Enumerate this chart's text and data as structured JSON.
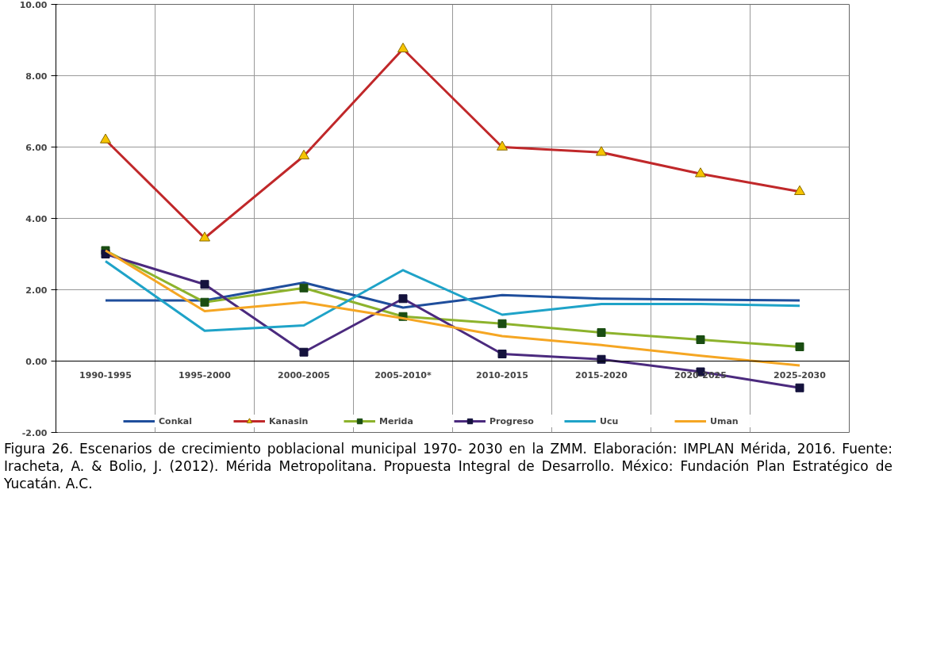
{
  "chart_data": {
    "type": "line",
    "categories": [
      "1990-1995",
      "1995-2000",
      "2000-2005",
      "2005-2010*",
      "2010-2015",
      "2015-2020",
      "2020-2025",
      "2025-2030"
    ],
    "series": [
      {
        "name": "Conkal",
        "color": "#1f4e9c",
        "marker": "none",
        "values": [
          1.7,
          1.7,
          2.2,
          1.5,
          1.85,
          1.75,
          1.72,
          1.7
        ]
      },
      {
        "name": "Kanasin",
        "color": "#c0282a",
        "marker": "triangle",
        "values": [
          6.2,
          3.45,
          5.75,
          8.75,
          6.0,
          5.85,
          5.25,
          4.75
        ]
      },
      {
        "name": "Merida",
        "color": "#8db32d",
        "marker": "square",
        "values": [
          3.1,
          1.65,
          2.05,
          1.25,
          1.05,
          0.8,
          0.6,
          0.4
        ]
      },
      {
        "name": "Progreso",
        "color": "#4b2a7e",
        "marker": "square",
        "values": [
          3.0,
          2.15,
          0.25,
          1.75,
          0.2,
          0.05,
          -0.3,
          -0.75
        ]
      },
      {
        "name": "Ucu",
        "color": "#1fa3c8",
        "marker": "none",
        "values": [
          2.8,
          0.85,
          1.0,
          2.55,
          1.3,
          1.6,
          1.6,
          1.55
        ]
      },
      {
        "name": "Uman",
        "color": "#f5a623",
        "marker": "none",
        "values": [
          3.1,
          1.4,
          1.65,
          1.2,
          0.7,
          0.45,
          0.15,
          -0.12
        ]
      }
    ],
    "ylim": [
      -2,
      10
    ],
    "yticks": [
      {
        "value": -2,
        "label": "-2.00"
      },
      {
        "value": 0,
        "label": "0.00"
      },
      {
        "value": 2,
        "label": "2.00"
      },
      {
        "value": 4,
        "label": "4.00"
      },
      {
        "value": 6,
        "label": "6.00"
      },
      {
        "value": 8,
        "label": "8.00"
      },
      {
        "value": 10,
        "label": "10.00"
      }
    ],
    "grid": true,
    "legend": "bottom",
    "line_style": "solid",
    "annotations": [
      "Figura 26. Escenarios de crecimiento poblacional municipal 1970- 2030 en la ZMM. Elaboración: IMPLAN Mérida, 2016. Fuente: Iracheta, A. & Bolio, J. (2012). Mérida Metropolitana. Propuesta Integral de Desarrollo. México: Fundación Plan Estratégico de Yucatán. A.C."
    ]
  }
}
